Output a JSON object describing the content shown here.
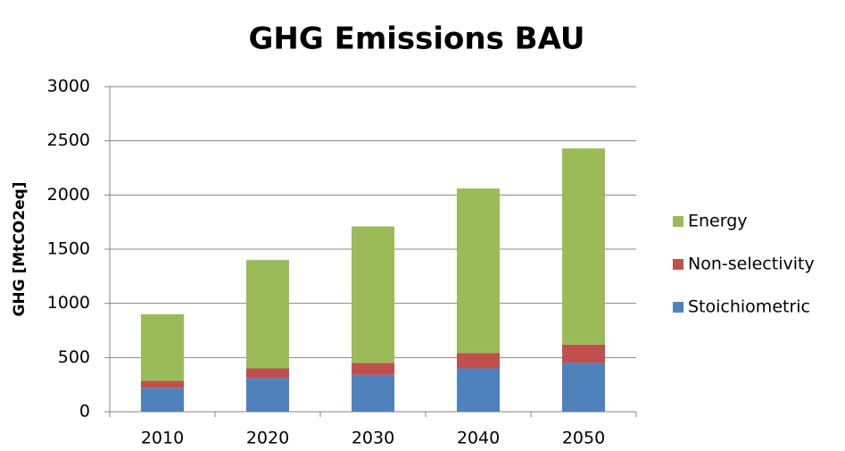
{
  "chart_data": {
    "type": "stacked_bar",
    "title": "GHG Emissions BAU",
    "y_label": "GHG [MtCO2eq]",
    "categories": [
      "2010",
      "2020",
      "2030",
      "2040",
      "2050"
    ],
    "series": [
      {
        "name": "Stoichiometric",
        "color": "#4f81bd",
        "values": [
          220,
          310,
          340,
          400,
          450
        ]
      },
      {
        "name": "Non-selectivity",
        "color": "#c0504d",
        "values": [
          65,
          90,
          110,
          140,
          170
        ]
      },
      {
        "name": "Energy",
        "color": "#9bbb59",
        "values": [
          615,
          1000,
          1260,
          1520,
          1810
        ]
      }
    ],
    "ylim": [
      0,
      3000
    ],
    "yticks": [
      0,
      500,
      1000,
      1500,
      2000,
      2500,
      3000
    ],
    "grid": true,
    "legend": "right"
  }
}
